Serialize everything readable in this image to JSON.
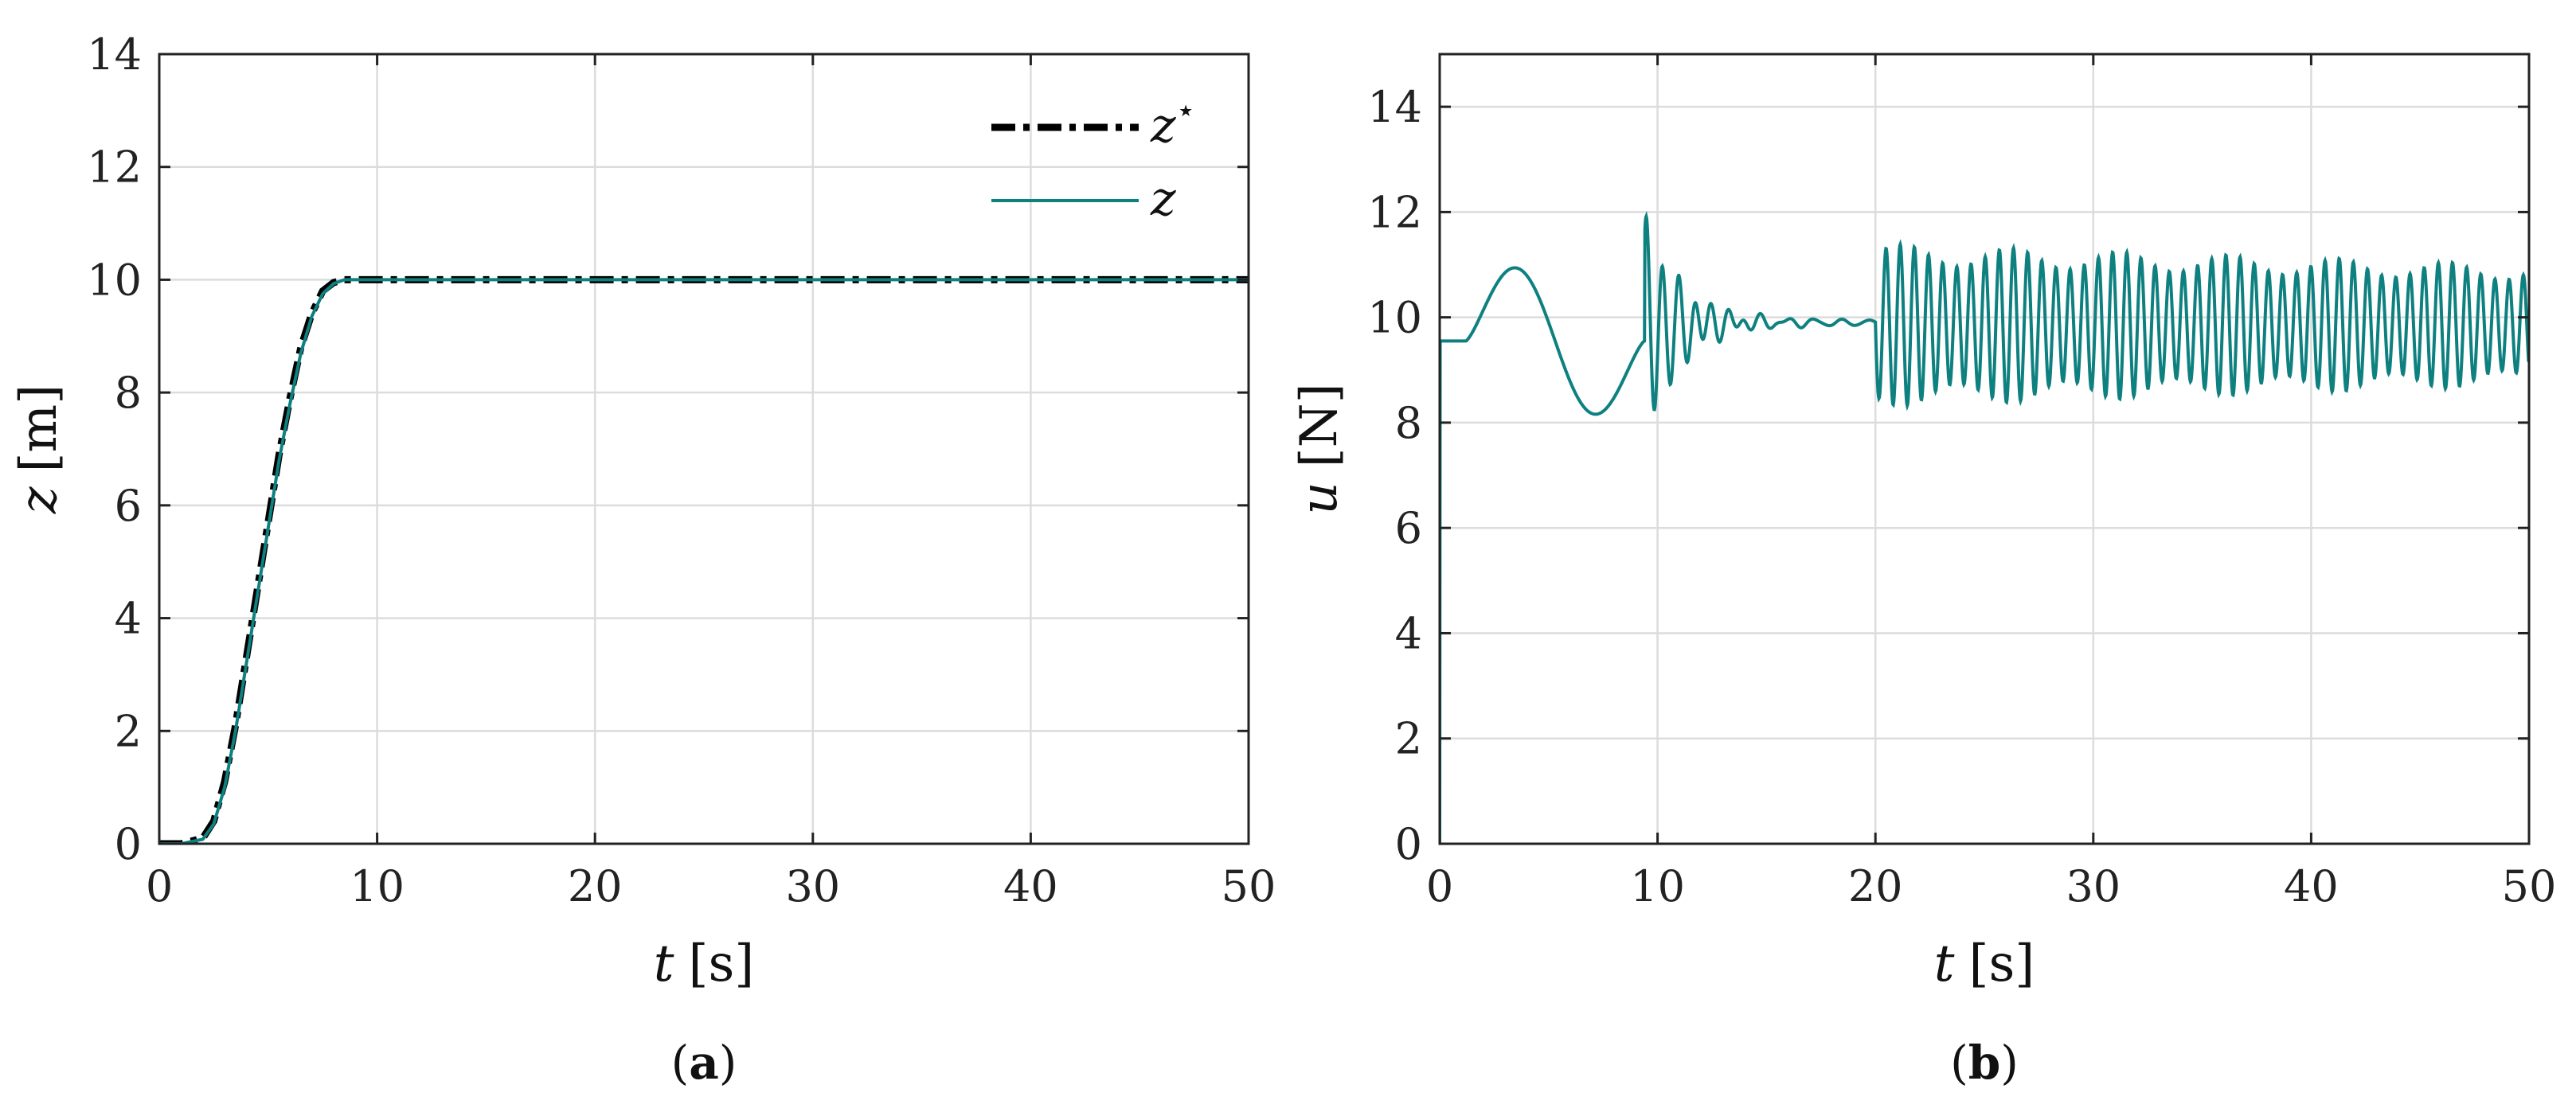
{
  "chart_data": [
    {
      "type": "line",
      "caption": "a",
      "xlabel": {
        "symbol": "t",
        "unit": "[s]"
      },
      "ylabel": {
        "symbol": "z",
        "unit": "[m]"
      },
      "xlim": [
        0,
        50
      ],
      "ylim": [
        0,
        14
      ],
      "xticks": [
        0,
        10,
        20,
        30,
        40,
        50
      ],
      "yticks": [
        0,
        2,
        4,
        6,
        8,
        10,
        12,
        14
      ],
      "grid": true,
      "legend_position": "top-right",
      "series": [
        {
          "name": "z*",
          "legend_label": {
            "symbol": "z",
            "sup": "⋆"
          },
          "style": "dash-dot",
          "color": "#000000",
          "x": [
            0,
            1,
            2,
            2.5,
            3,
            3.5,
            4,
            4.5,
            5,
            5.5,
            6,
            6.5,
            7,
            7.5,
            8,
            8.5,
            9,
            9.5,
            10,
            20,
            30,
            40,
            50
          ],
          "y": [
            0,
            0,
            0.1,
            0.4,
            1.1,
            2.1,
            3.3,
            4.5,
            5.7,
            6.9,
            7.9,
            8.8,
            9.4,
            9.8,
            9.95,
            10,
            10,
            10,
            10,
            10,
            10,
            10,
            10
          ]
        },
        {
          "name": "z",
          "legend_label": {
            "symbol": "z",
            "sup": ""
          },
          "style": "solid",
          "color": "#0e8080",
          "x": [
            0,
            1,
            2,
            2.5,
            3,
            3.5,
            4,
            4.5,
            5,
            5.5,
            6,
            6.5,
            7,
            7.5,
            8,
            8.5,
            9,
            9.5,
            10,
            20,
            30,
            40,
            50
          ],
          "y": [
            0,
            0,
            0.08,
            0.35,
            1.0,
            2.0,
            3.2,
            4.4,
            5.6,
            6.8,
            7.8,
            8.7,
            9.35,
            9.75,
            9.93,
            10,
            10,
            10,
            10,
            10,
            10,
            10,
            10
          ]
        }
      ]
    },
    {
      "type": "line",
      "caption": "b",
      "xlabel": {
        "symbol": "t",
        "unit": "[s]"
      },
      "ylabel": {
        "symbol": "u",
        "unit": "[N]"
      },
      "xlim": [
        0,
        50
      ],
      "ylim": [
        0,
        15
      ],
      "xticks": [
        0,
        10,
        20,
        30,
        40,
        50
      ],
      "yticks": [
        0,
        2,
        4,
        6,
        8,
        10,
        12,
        14
      ],
      "grid": true,
      "series": [
        {
          "name": "u",
          "color": "#0e8080",
          "segments": [
            {
              "t_start": 0,
              "t_end": 9.4,
              "base": 9.55,
              "description_free_model": "smooth"
            },
            {
              "t_start": 9.4,
              "t_end": 20,
              "base": 9.9
            },
            {
              "t_start": 20,
              "t_end": 50,
              "base": 9.85
            }
          ],
          "key_points": {
            "t": [
              0,
              0.02,
              1.2,
              3.4,
              6.6,
              9.4,
              9.7,
              10.0,
              10.4,
              11.4,
              20.0,
              20.1,
              25.0,
              50.0
            ],
            "u": [
              0,
              9.55,
              9.55,
              10.85,
              8.35,
              9.55,
              12.05,
              9.7,
              11.45,
              10.3,
              10.1,
              8.55,
              11.35,
              10.1
            ]
          },
          "steady_oscillation": {
            "t_start": 20,
            "period": 0.65,
            "amp_start": 1.35,
            "amp_end": 1.0,
            "center": 9.85
          }
        }
      ]
    }
  ]
}
